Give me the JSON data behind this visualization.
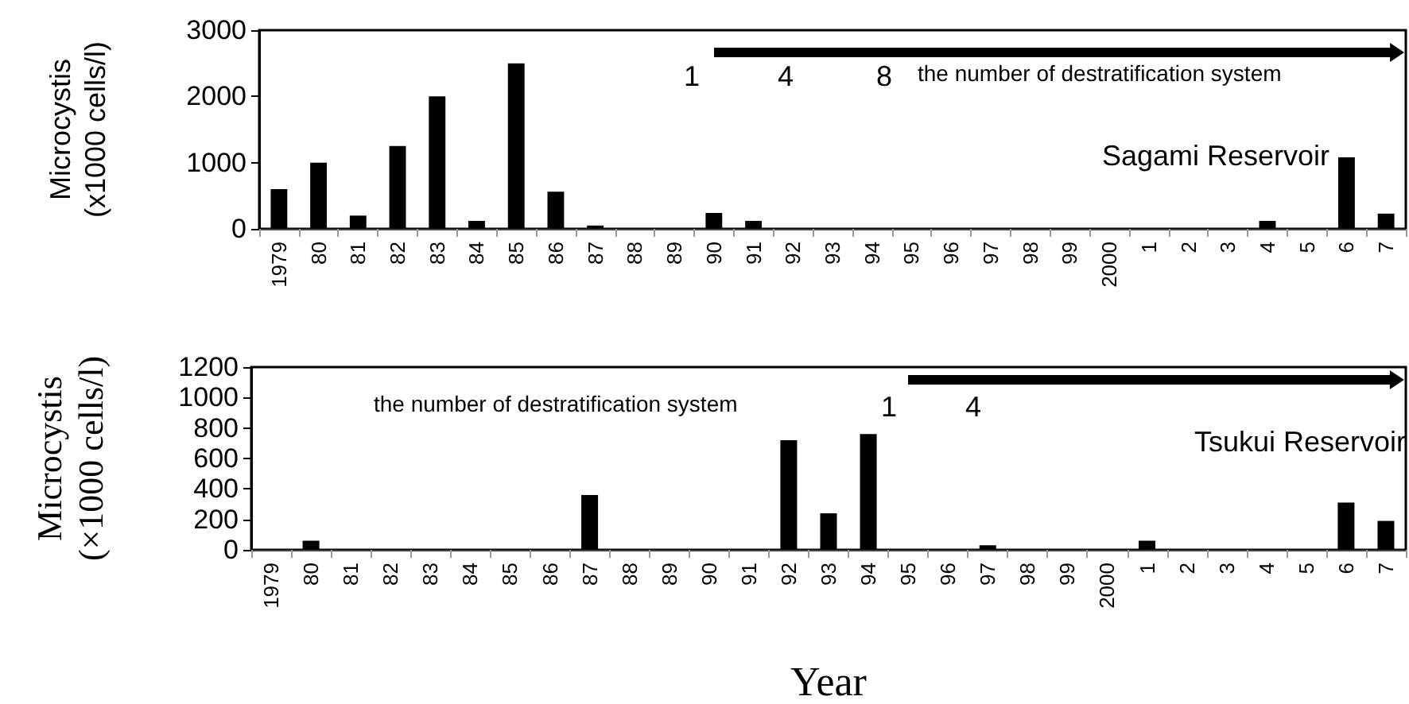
{
  "chart_data": [
    {
      "type": "bar",
      "ylabel": "Microcystis\n(x1000 cells/l)",
      "categories": [
        "1979",
        "80",
        "81",
        "82",
        "83",
        "84",
        "85",
        "86",
        "87",
        "88",
        "89",
        "90",
        "91",
        "92",
        "93",
        "94",
        "95",
        "96",
        "97",
        "98",
        "99",
        "2000",
        "1",
        "2",
        "3",
        "4",
        "5",
        "6",
        "7"
      ],
      "series": [
        {
          "color": "#000000",
          "values": [
            600,
            1000,
            200,
            1250,
            2000,
            120,
            2500,
            560,
            50,
            0,
            0,
            240,
            120,
            0,
            0,
            0,
            0,
            0,
            0,
            0,
            0,
            0,
            0,
            0,
            0,
            120,
            0,
            1080,
            230
          ]
        }
      ],
      "ylim": [
        0,
        3000
      ],
      "yticks": [
        0,
        1000,
        2000,
        3000
      ],
      "grid": false,
      "annotations": [
        "1",
        "4",
        "8",
        "the number of destratification system",
        "Sagami Reservoir"
      ]
    },
    {
      "type": "bar",
      "ylabel": "Microcystis\n(×1000 cells/l)",
      "xlabel": "Year",
      "categories": [
        "1979",
        "80",
        "81",
        "82",
        "83",
        "84",
        "85",
        "86",
        "87",
        "88",
        "89",
        "90",
        "91",
        "92",
        "93",
        "94",
        "95",
        "96",
        "97",
        "98",
        "99",
        "2000",
        "1",
        "2",
        "3",
        "4",
        "5",
        "6",
        "7"
      ],
      "series": [
        {
          "color": "#000000",
          "values": [
            0,
            60,
            0,
            0,
            0,
            0,
            0,
            0,
            360,
            0,
            0,
            0,
            0,
            720,
            240,
            760,
            0,
            0,
            30,
            0,
            0,
            0,
            60,
            0,
            0,
            0,
            0,
            310,
            190
          ]
        }
      ],
      "ylim": [
        0,
        1200
      ],
      "yticks": [
        0,
        200,
        400,
        600,
        800,
        1000,
        1200
      ],
      "grid": false,
      "annotations": [
        "the number of destratification system",
        "1",
        "4",
        "Tsukui Reservoir"
      ]
    }
  ]
}
